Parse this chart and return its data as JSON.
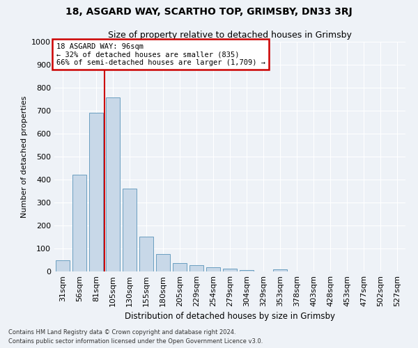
{
  "title": "18, ASGARD WAY, SCARTHO TOP, GRIMSBY, DN33 3RJ",
  "subtitle": "Size of property relative to detached houses in Grimsby",
  "xlabel": "Distribution of detached houses by size in Grimsby",
  "ylabel": "Number of detached properties",
  "bar_values": [
    47,
    420,
    690,
    757,
    362,
    152,
    75,
    37,
    26,
    19,
    11,
    6,
    0,
    9,
    0,
    0,
    0,
    0,
    0,
    0,
    0
  ],
  "bar_labels": [
    "31sqm",
    "56sqm",
    "81sqm",
    "105sqm",
    "130sqm",
    "155sqm",
    "180sqm",
    "205sqm",
    "229sqm",
    "254sqm",
    "279sqm",
    "304sqm",
    "329sqm",
    "353sqm",
    "378sqm",
    "403sqm",
    "428sqm",
    "453sqm",
    "477sqm",
    "502sqm",
    "527sqm"
  ],
  "bar_color": "#c8d8e8",
  "bar_edge_color": "#6a9ec0",
  "vline_color": "#cc0000",
  "ylim": [
    0,
    1000
  ],
  "annotation_text": "18 ASGARD WAY: 96sqm\n← 32% of detached houses are smaller (835)\n66% of semi-detached houses are larger (1,709) →",
  "annotation_box_color": "#cc0000",
  "footer_line1": "Contains HM Land Registry data © Crown copyright and database right 2024.",
  "footer_line2": "Contains public sector information licensed under the Open Government Licence v3.0.",
  "background_color": "#eef2f7",
  "grid_color": "#ffffff"
}
